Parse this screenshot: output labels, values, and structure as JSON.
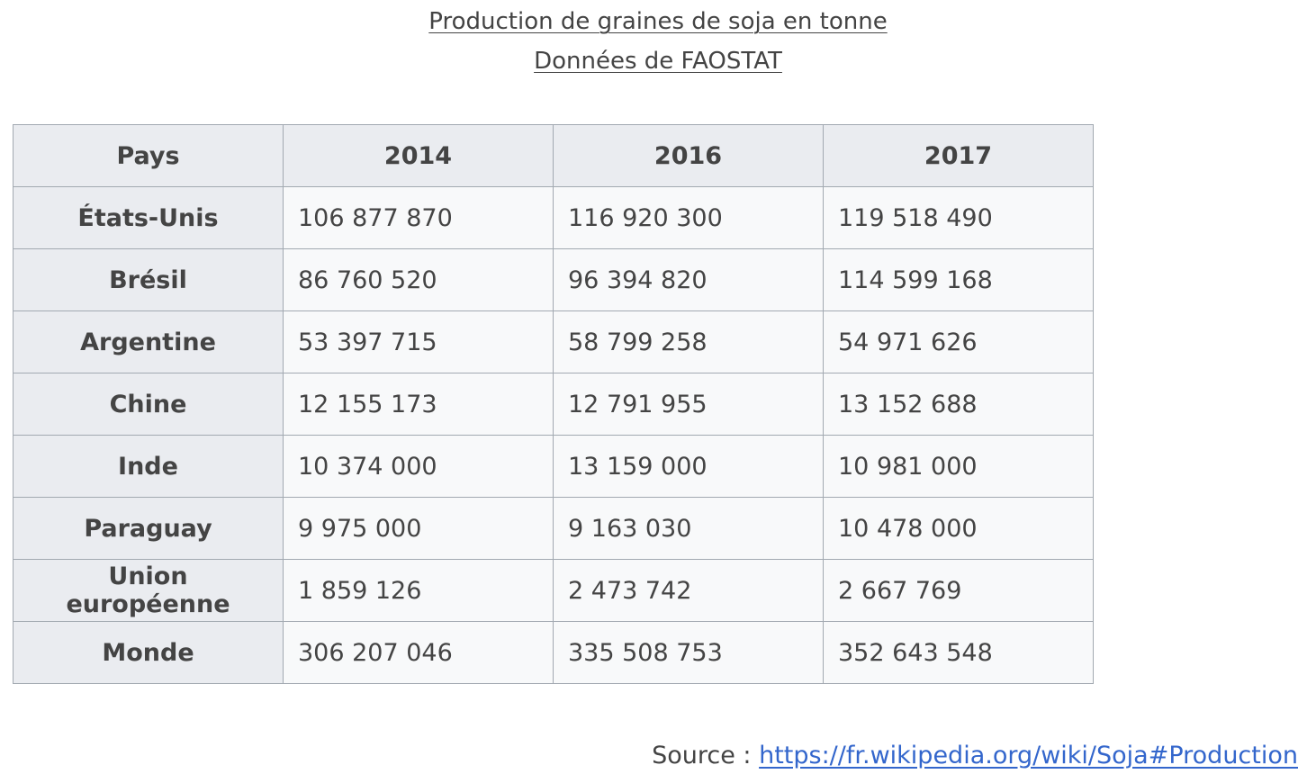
{
  "caption": {
    "line1": "Production de graines de soja en tonne",
    "line2": "Données de FAOSTAT"
  },
  "table": {
    "headers": [
      "Pays",
      "2014",
      "2016",
      "2017"
    ],
    "rows": [
      {
        "country": "États-Unis",
        "values": [
          "106 877 870",
          "116 920 300",
          "119 518 490"
        ]
      },
      {
        "country": "Brésil",
        "values": [
          "86 760 520",
          "96 394 820",
          "114 599 168"
        ]
      },
      {
        "country": "Argentine",
        "values": [
          "53 397 715",
          "58 799 258",
          "54 971 626"
        ]
      },
      {
        "country": "Chine",
        "values": [
          "12 155 173",
          "12 791 955",
          "13 152 688"
        ]
      },
      {
        "country": "Inde",
        "values": [
          "10 374 000",
          "13 159 000",
          "10 981 000"
        ]
      },
      {
        "country": "Paraguay",
        "values": [
          "9 975 000",
          "9 163 030",
          "10 478 000"
        ]
      },
      {
        "country": "Union européenne",
        "values": [
          "1 859 126",
          "2 473 742",
          "2 667 769"
        ]
      },
      {
        "country": "Monde",
        "values": [
          "306 207 046",
          "335 508 753",
          "352 643 548"
        ]
      }
    ]
  },
  "source": {
    "label": "Source : ",
    "link": "https://fr.wikipedia.org/wiki/Soja#Production"
  }
}
